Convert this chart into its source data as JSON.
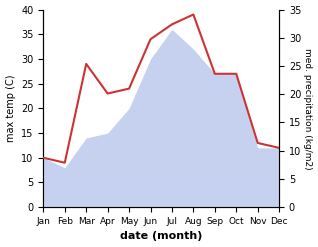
{
  "months": [
    "Jan",
    "Feb",
    "Mar",
    "Apr",
    "May",
    "Jun",
    "Jul",
    "Aug",
    "Sep",
    "Oct",
    "Nov",
    "Dec"
  ],
  "temperature": [
    10,
    9,
    29,
    23,
    24,
    34,
    37,
    39,
    27,
    27,
    13,
    12
  ],
  "precipitation_left_scale": [
    10,
    8,
    14,
    15,
    20,
    30,
    36,
    32,
    27,
    27,
    12,
    12
  ],
  "temp_color": "#cc3333",
  "precip_color": "#c0ccee",
  "ylabel_left": "max temp (C)",
  "ylabel_right": "med. precipitation (kg/m2)",
  "xlabel": "date (month)",
  "ylim_left": [
    0,
    40
  ],
  "ylim_right": [
    0,
    35
  ],
  "bg_color": "#ffffff"
}
